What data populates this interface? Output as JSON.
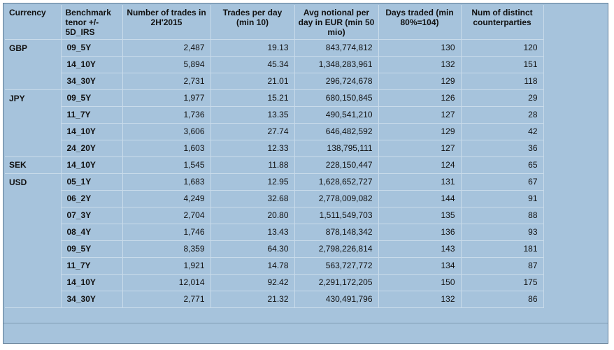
{
  "headers": [
    "Currency",
    "Benchmark tenor +/- 5D_IRS",
    "Number of trades in 2H'2015",
    "Trades per day (min 10)",
    "Avg notional per day in EUR (min 50 mio)",
    "Days traded (min 80%=104)",
    "Num of distinct counterparties"
  ],
  "groups": [
    {
      "currency": "GBP",
      "rows": [
        {
          "tenor": "09_5Y",
          "trades": "2,487",
          "per_day": "19.13",
          "notional": "843,774,812",
          "days": "130",
          "cps": "120"
        },
        {
          "tenor": "14_10Y",
          "trades": "5,894",
          "per_day": "45.34",
          "notional": "1,348,283,961",
          "days": "132",
          "cps": "151"
        },
        {
          "tenor": "34_30Y",
          "trades": "2,731",
          "per_day": "21.01",
          "notional": "296,724,678",
          "days": "129",
          "cps": "118"
        }
      ]
    },
    {
      "currency": "JPY",
      "rows": [
        {
          "tenor": "09_5Y",
          "trades": "1,977",
          "per_day": "15.21",
          "notional": "680,150,845",
          "days": "126",
          "cps": "29"
        },
        {
          "tenor": "11_7Y",
          "trades": "1,736",
          "per_day": "13.35",
          "notional": "490,541,210",
          "days": "127",
          "cps": "28"
        },
        {
          "tenor": "14_10Y",
          "trades": "3,606",
          "per_day": "27.74",
          "notional": "646,482,592",
          "days": "129",
          "cps": "42"
        },
        {
          "tenor": "24_20Y",
          "trades": "1,603",
          "per_day": "12.33",
          "notional": "138,795,111",
          "days": "127",
          "cps": "36"
        }
      ]
    },
    {
      "currency": "SEK",
      "rows": [
        {
          "tenor": "14_10Y",
          "trades": "1,545",
          "per_day": "11.88",
          "notional": "228,150,447",
          "days": "124",
          "cps": "65"
        }
      ]
    },
    {
      "currency": "USD",
      "rows": [
        {
          "tenor": "05_1Y",
          "trades": "1,683",
          "per_day": "12.95",
          "notional": "1,628,652,727",
          "days": "131",
          "cps": "67"
        },
        {
          "tenor": "06_2Y",
          "trades": "4,249",
          "per_day": "32.68",
          "notional": "2,778,009,082",
          "days": "144",
          "cps": "91"
        },
        {
          "tenor": "07_3Y",
          "trades": "2,704",
          "per_day": "20.80",
          "notional": "1,511,549,703",
          "days": "135",
          "cps": "88"
        },
        {
          "tenor": "08_4Y",
          "trades": "1,746",
          "per_day": "13.43",
          "notional": "878,148,342",
          "days": "136",
          "cps": "93"
        },
        {
          "tenor": "09_5Y",
          "trades": "8,359",
          "per_day": "64.30",
          "notional": "2,798,226,814",
          "days": "143",
          "cps": "181"
        },
        {
          "tenor": "11_7Y",
          "trades": "1,921",
          "per_day": "14.78",
          "notional": "563,727,772",
          "days": "134",
          "cps": "87"
        },
        {
          "tenor": "14_10Y",
          "trades": "12,014",
          "per_day": "92.42",
          "notional": "2,291,172,205",
          "days": "150",
          "cps": "175"
        },
        {
          "tenor": "34_30Y",
          "trades": "2,771",
          "per_day": "21.32",
          "notional": "430,491,796",
          "days": "132",
          "cps": "86"
        }
      ]
    }
  ],
  "colors": {
    "panel_background": "#a6c3dc",
    "grid_lines": "#c9dbea",
    "frame_border": "#5d7b95"
  }
}
